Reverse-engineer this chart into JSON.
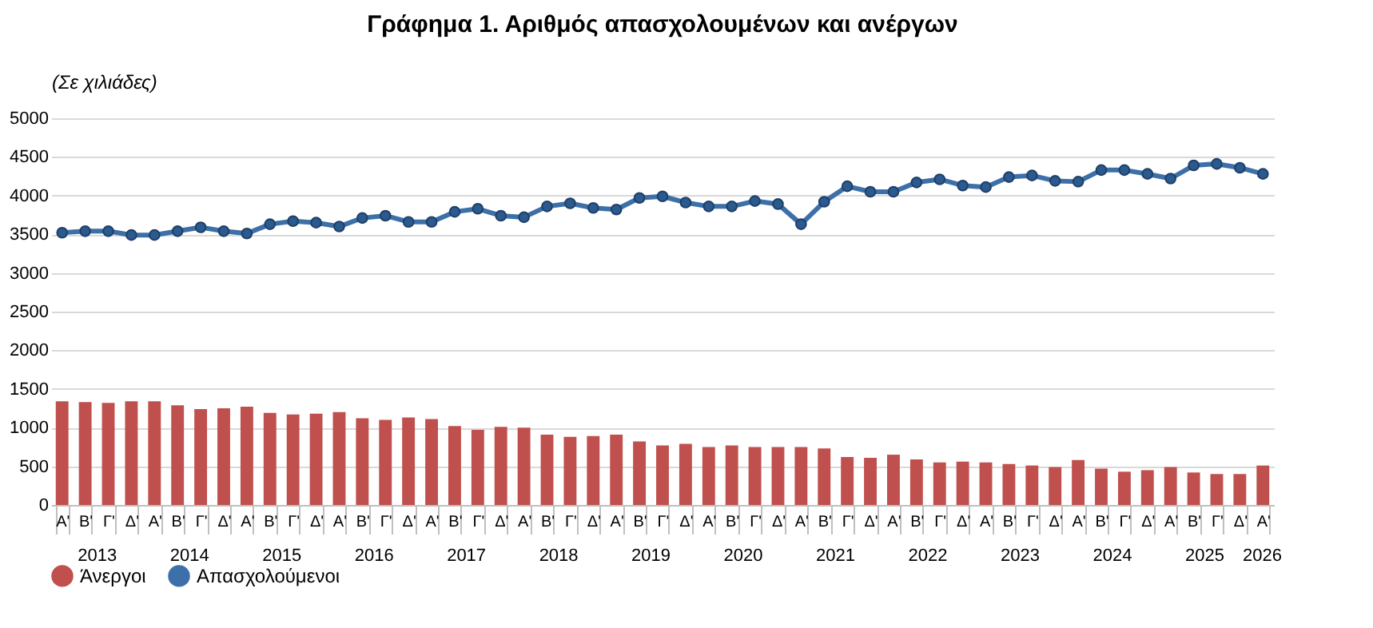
{
  "chart_data": {
    "type": "bar",
    "title": "Γράφημα 1. Αριθμός απασχολουμένων και ανέργων",
    "ylabel": "(Σε χιλιάδες)",
    "categories": [
      "Α'",
      "Β'",
      "Γ'",
      "Δ'",
      "Α'",
      "Β'",
      "Γ'",
      "Δ'",
      "Α'",
      "Β'",
      "Γ'",
      "Δ'",
      "Α'",
      "Β'",
      "Γ'",
      "Δ'",
      "Α'",
      "Β'",
      "Γ'",
      "Δ'",
      "Α'",
      "Β'",
      "Γ'",
      "Δ'",
      "Α'",
      "Β'",
      "Γ'",
      "Δ'",
      "Α'",
      "Β'",
      "Γ'",
      "Δ'",
      "Α'",
      "Β'",
      "Γ'",
      "Δ'",
      "Α'",
      "Β'",
      "Γ'",
      "Δ'",
      "Α'",
      "Β'",
      "Γ'",
      "Δ'",
      "Α'",
      "Β'",
      "Γ'",
      "Δ'",
      "Α'",
      "Β'",
      "Γ'",
      "Δ'",
      "Α'"
    ],
    "annotations": [
      "2013",
      "2014",
      "2015",
      "2016",
      "2017",
      "2018",
      "2019",
      "2020",
      "2021",
      "2022",
      "2023",
      "2024",
      "2025",
      "2026"
    ],
    "series": [
      {
        "name": "Άνεργοι",
        "color": "#c0504d",
        "values": [
          1340,
          1330,
          1320,
          1340,
          1340,
          1290,
          1240,
          1250,
          1270,
          1190,
          1170,
          1180,
          1200,
          1120,
          1100,
          1130,
          1110,
          1020,
          970,
          1010,
          1000,
          910,
          880,
          890,
          910,
          820,
          770,
          790,
          750,
          770,
          750,
          750,
          750,
          730,
          620,
          610,
          650,
          590,
          550,
          560,
          550,
          530,
          510,
          490,
          580,
          470,
          430,
          450,
          490,
          420,
          400,
          400,
          510
        ]
      },
      {
        "name": "Απασχολούμενοι",
        "type": "line",
        "color": "#3d6fa8",
        "values": [
          3520,
          3540,
          3540,
          3490,
          3490,
          3540,
          3590,
          3540,
          3510,
          3630,
          3670,
          3650,
          3600,
          3710,
          3740,
          3660,
          3660,
          3790,
          3830,
          3740,
          3720,
          3860,
          3900,
          3840,
          3820,
          3970,
          3990,
          3910,
          3860,
          3860,
          3930,
          3890,
          3630,
          3920,
          4120,
          4050,
          4050,
          4170,
          4210,
          4130,
          4110,
          4240,
          4260,
          4190,
          4180,
          4330,
          4330,
          4280,
          4220,
          4390,
          4410,
          4360,
          4280
        ]
      }
    ],
    "ylim": [
      0,
      5000
    ],
    "yticks": [
      0,
      500,
      1000,
      1500,
      2000,
      2500,
      3000,
      3500,
      4000,
      4500,
      5000
    ],
    "grid": "y",
    "legend": "bottom",
    "marker": "circle",
    "line_style": "solid"
  }
}
